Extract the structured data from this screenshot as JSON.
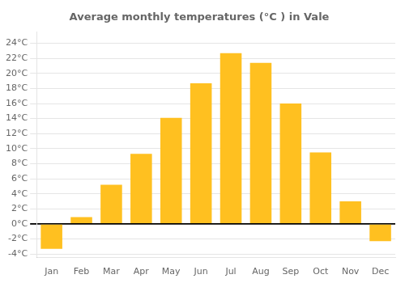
{
  "chart_data": {
    "type": "bar",
    "title": "Average monthly temperatures (°C ) in Vale",
    "categories": [
      "Jan",
      "Feb",
      "Mar",
      "Apr",
      "May",
      "Jun",
      "Jul",
      "Aug",
      "Sep",
      "Oct",
      "Nov",
      "Dec"
    ],
    "values": [
      -3.3,
      0.9,
      5.2,
      9.3,
      14.1,
      18.7,
      22.7,
      21.4,
      16.0,
      9.5,
      3.0,
      -2.3
    ],
    "color": "#FFC020",
    "ylim": [
      -4.5,
      25.5
    ],
    "yticks": [
      {
        "value": -4,
        "label": "-4°C"
      },
      {
        "value": -2,
        "label": "-2°C"
      },
      {
        "value": 0,
        "label": "0°C"
      },
      {
        "value": 2,
        "label": "2°C"
      },
      {
        "value": 4,
        "label": "4°C"
      },
      {
        "value": 6,
        "label": "6°C"
      },
      {
        "value": 8,
        "label": "8°C"
      },
      {
        "value": 10,
        "label": "10°C"
      },
      {
        "value": 12,
        "label": "12°C"
      },
      {
        "value": 14,
        "label": "14°C"
      },
      {
        "value": 16,
        "label": "16°C"
      },
      {
        "value": 18,
        "label": "18°C"
      },
      {
        "value": 20,
        "label": "20°C"
      },
      {
        "value": 22,
        "label": "22°C"
      },
      {
        "value": 24,
        "label": "24°C"
      }
    ],
    "grid": true
  }
}
